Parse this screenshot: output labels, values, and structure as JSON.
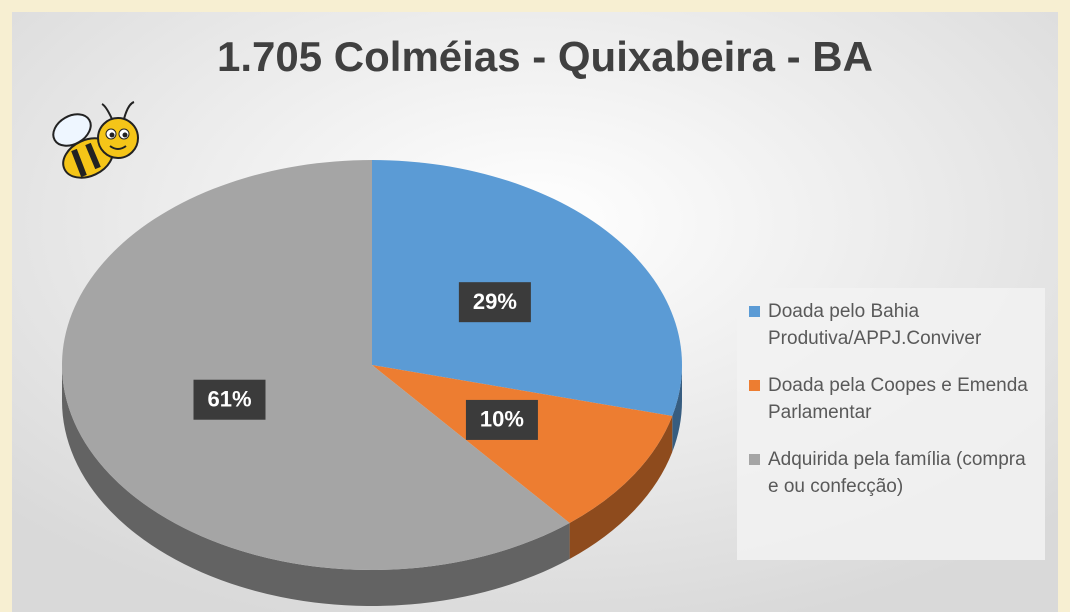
{
  "chart_data": {
    "type": "pie",
    "title": "1.705 Colméias - Quixabeira - BA",
    "categories": [
      "Doada pelo Bahia Produtiva/APPJ.Conviver",
      "Doada pela Coopes e Emenda Parlamentar",
      "Adquirida pela família (compra e ou confecção)"
    ],
    "values": [
      29,
      10,
      61
    ],
    "value_labels": [
      "29%",
      "10%",
      "61%"
    ],
    "colors": [
      "#5b9bd5",
      "#ed7d31",
      "#a5a5a5"
    ],
    "legend": "right"
  }
}
